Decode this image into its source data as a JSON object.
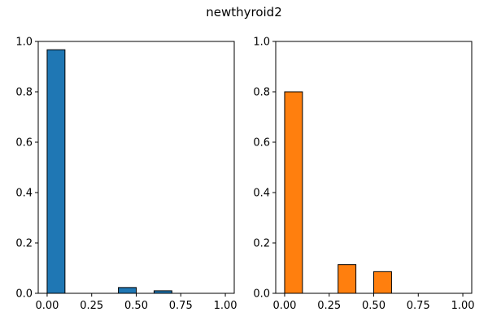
{
  "figure": {
    "title": "newthyroid2"
  },
  "chart_data": [
    {
      "type": "bar",
      "title": "",
      "xlabel": "",
      "ylabel": "",
      "xlim": [
        -0.05,
        1.05
      ],
      "ylim": [
        0,
        1.0
      ],
      "xticks": [
        "0.00",
        "0.25",
        "0.50",
        "0.75",
        "1.00"
      ],
      "yticks": [
        "0.0",
        "0.2",
        "0.4",
        "0.6",
        "0.8",
        "1.0"
      ],
      "bin_width": 0.1,
      "bars": [
        {
          "x": 0.0,
          "value": 0.967
        },
        {
          "x": 0.4,
          "value": 0.023
        },
        {
          "x": 0.6,
          "value": 0.01
        }
      ],
      "color": "#1f77b4",
      "edgecolor": "#000000",
      "grid": false
    },
    {
      "type": "bar",
      "title": "",
      "xlabel": "",
      "ylabel": "",
      "xlim": [
        -0.05,
        1.05
      ],
      "ylim": [
        0,
        1.0
      ],
      "xticks": [
        "0.00",
        "0.25",
        "0.50",
        "0.75",
        "1.00"
      ],
      "yticks": [
        "0.0",
        "0.2",
        "0.4",
        "0.6",
        "0.8",
        "1.0"
      ],
      "bin_width": 0.1,
      "bars": [
        {
          "x": 0.0,
          "value": 0.8
        },
        {
          "x": 0.3,
          "value": 0.114
        },
        {
          "x": 0.5,
          "value": 0.086
        }
      ],
      "color": "#ff7f0e",
      "edgecolor": "#000000",
      "grid": false
    }
  ]
}
